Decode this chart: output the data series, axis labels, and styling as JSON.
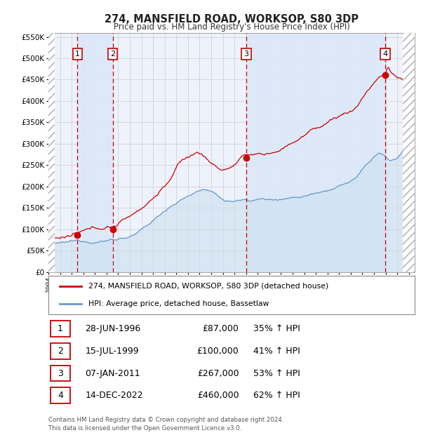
{
  "title": "274, MANSFIELD ROAD, WORKSOP, S80 3DP",
  "subtitle": "Price paid vs. HM Land Registry's House Price Index (HPI)",
  "title_fontsize": 10.5,
  "subtitle_fontsize": 8.5,
  "xlim": [
    1994.0,
    2025.5
  ],
  "ylim": [
    0,
    560000
  ],
  "yticks": [
    0,
    50000,
    100000,
    150000,
    200000,
    250000,
    300000,
    350000,
    400000,
    450000,
    500000,
    550000
  ],
  "ytick_labels": [
    "£0",
    "£50K",
    "£100K",
    "£150K",
    "£200K",
    "£250K",
    "£300K",
    "£350K",
    "£400K",
    "£450K",
    "£500K",
    "£550K"
  ],
  "xticks": [
    1994,
    1995,
    1996,
    1997,
    1998,
    1999,
    2000,
    2001,
    2002,
    2003,
    2004,
    2005,
    2006,
    2007,
    2008,
    2009,
    2010,
    2011,
    2012,
    2013,
    2014,
    2015,
    2016,
    2017,
    2018,
    2019,
    2020,
    2021,
    2022,
    2023,
    2024,
    2025
  ],
  "red_line_color": "#cc0000",
  "blue_line_color": "#6699cc",
  "blue_fill_color": "#cce0f0",
  "grid_color": "#cccccc",
  "bg_color": "#ffffff",
  "plot_bg_color": "#eef2fb",
  "vline_color": "#cc0000",
  "hatch_color": "#bbbbbb",
  "shade_color": "#dce8f8",
  "purchases": [
    {
      "num": 1,
      "year": 1996.49,
      "price": 87000,
      "label": "1",
      "date": "28-JUN-1996",
      "amount": "£87,000",
      "pct": "35% ↑ HPI"
    },
    {
      "num": 2,
      "year": 1999.54,
      "price": 100000,
      "label": "2",
      "date": "15-JUL-1999",
      "amount": "£100,000",
      "pct": "41% ↑ HPI"
    },
    {
      "num": 3,
      "year": 2011.02,
      "price": 267000,
      "label": "3",
      "date": "07-JAN-2011",
      "amount": "£267,000",
      "pct": "53% ↑ HPI"
    },
    {
      "num": 4,
      "year": 2022.96,
      "price": 460000,
      "label": "4",
      "date": "14-DEC-2022",
      "amount": "£460,000",
      "pct": "62% ↑ HPI"
    }
  ],
  "legend_label_red": "274, MANSFIELD ROAD, WORKSOP, S80 3DP (detached house)",
  "legend_label_blue": "HPI: Average price, detached house, Bassetlaw",
  "footer": "Contains HM Land Registry data © Crown copyright and database right 2024.\nThis data is licensed under the Open Government Licence v3.0."
}
